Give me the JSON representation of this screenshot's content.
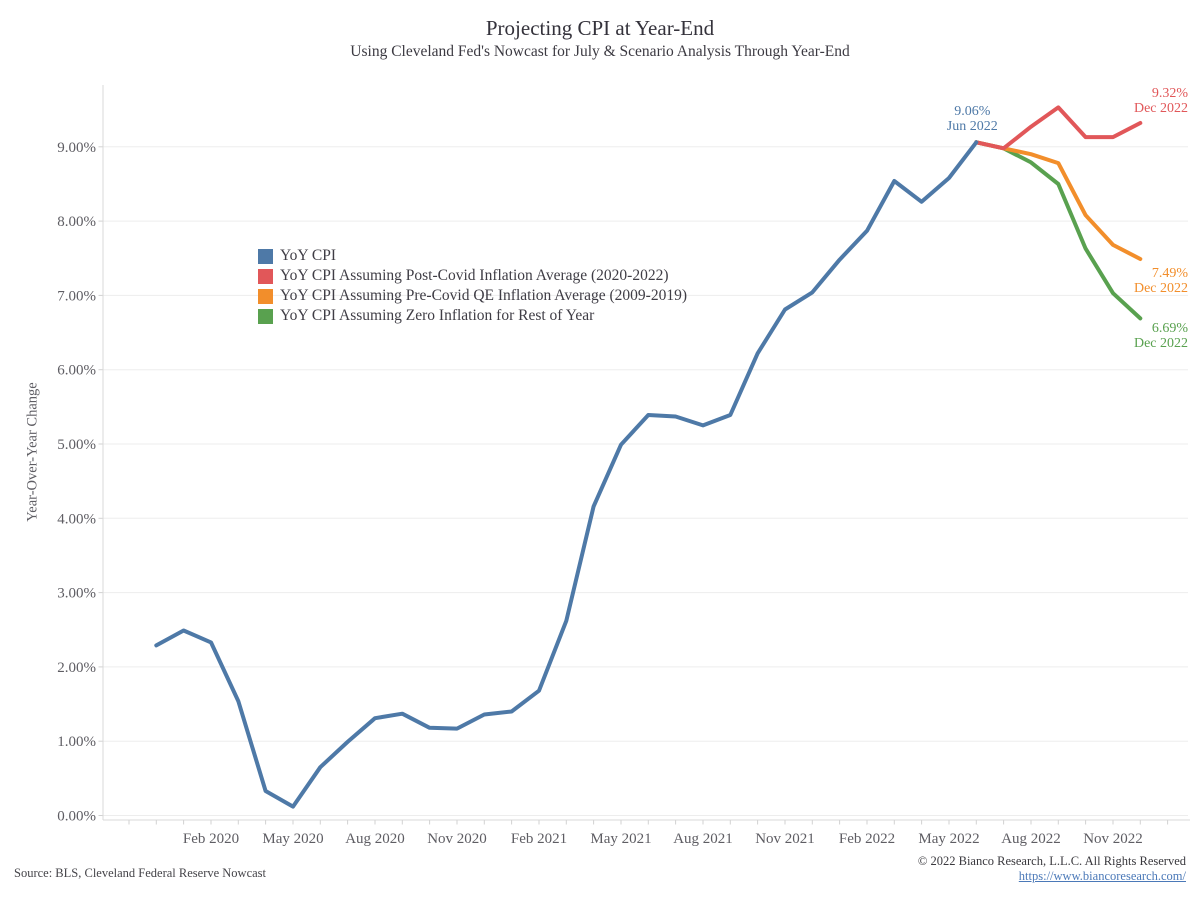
{
  "header": {
    "title": "Projecting CPI at Year-End",
    "subtitle": "Using Cleveland Fed's Nowcast for July & Scenario Analysis Through Year-End"
  },
  "footer": {
    "source": "Source: BLS, Cleveland Federal Reserve Nowcast",
    "copyright": "© 2022 Bianco Research, L.L.C. All Rights Reserved",
    "link": "https://www.biancoresearch.com/"
  },
  "chart_data": {
    "type": "line",
    "title": "Projecting CPI at Year-End",
    "subtitle": "Using Cleveland Fed's Nowcast for July & Scenario Analysis Through Year-End",
    "xlabel": "",
    "ylabel": "Year-Over-Year Change",
    "ylim": [
      0,
      9.85
    ],
    "grid": "horizontal",
    "legend_position": "inside-top-left",
    "x_unit": "month index, 0 = Dec 2019",
    "y_ticks": [
      {
        "value": 0,
        "label": "0.00%"
      },
      {
        "value": 1,
        "label": "1.00%"
      },
      {
        "value": 2,
        "label": "2.00%"
      },
      {
        "value": 3,
        "label": "3.00%"
      },
      {
        "value": 4,
        "label": "4.00%"
      },
      {
        "value": 5,
        "label": "5.00%"
      },
      {
        "value": 6,
        "label": "6.00%"
      },
      {
        "value": 7,
        "label": "7.00%"
      },
      {
        "value": 8,
        "label": "8.00%"
      },
      {
        "value": 9,
        "label": "9.00%"
      }
    ],
    "x_ticks": [
      {
        "month": 2,
        "label": "Feb 2020"
      },
      {
        "month": 5,
        "label": "May 2020"
      },
      {
        "month": 8,
        "label": "Aug 2020"
      },
      {
        "month": 11,
        "label": "Nov 2020"
      },
      {
        "month": 14,
        "label": "Feb 2021"
      },
      {
        "month": 17,
        "label": "May 2021"
      },
      {
        "month": 20,
        "label": "Aug 2021"
      },
      {
        "month": 23,
        "label": "Nov 2021"
      },
      {
        "month": 26,
        "label": "Feb 2022"
      },
      {
        "month": 29,
        "label": "May 2022"
      },
      {
        "month": 32,
        "label": "Aug 2022"
      },
      {
        "month": 35,
        "label": "Nov 2022"
      }
    ],
    "series": [
      {
        "name": "YoY CPI",
        "color": "#4e79a7",
        "start_month": 0,
        "months_note": "Dec 2019 - Jun 2022",
        "values": [
          2.29,
          2.49,
          2.33,
          1.54,
          0.33,
          0.12,
          0.65,
          0.99,
          1.31,
          1.37,
          1.18,
          1.17,
          1.36,
          1.4,
          1.68,
          2.62,
          4.16,
          4.99,
          5.39,
          5.37,
          5.25,
          5.39,
          6.22,
          6.81,
          7.04,
          7.48,
          7.87,
          8.54,
          8.26,
          8.58,
          9.06
        ]
      },
      {
        "name": "YoY CPI Assuming Post-Covid Inflation Average (2020-2022)",
        "color": "#e15759",
        "start_month": 30,
        "months_note": "Jun 2022 - Dec 2022",
        "values": [
          9.06,
          8.98,
          9.27,
          9.53,
          9.13,
          9.13,
          9.32
        ]
      },
      {
        "name": "YoY CPI Assuming Pre-Covid QE Inflation Average (2009-2019)",
        "color": "#f28e2b",
        "start_month": 30,
        "months_note": "Jun 2022 - Dec 2022",
        "values": [
          9.06,
          8.98,
          8.9,
          8.78,
          8.08,
          7.68,
          7.49
        ]
      },
      {
        "name": "YoY CPI Assuming Zero Inflation for Rest of Year",
        "color": "#59a14f",
        "start_month": 30,
        "months_note": "Jun 2022 - Dec 2022",
        "values": [
          9.06,
          8.98,
          8.79,
          8.5,
          7.63,
          7.03,
          6.69
        ]
      }
    ],
    "annotations": [
      {
        "id": "jun-peak",
        "value_label": "9.06%",
        "date_label": "Jun 2022",
        "color": "#4e79a7",
        "month": 30,
        "value": 9.06
      },
      {
        "id": "red-end",
        "value_label": "9.32%",
        "date_label": "Dec 2022",
        "color": "#e15759",
        "month": 36,
        "value": 9.32
      },
      {
        "id": "orange-end",
        "value_label": "7.49%",
        "date_label": "Dec 2022",
        "color": "#f28e2b",
        "month": 36,
        "value": 7.49
      },
      {
        "id": "green-end",
        "value_label": "6.69%",
        "date_label": "Dec 2022",
        "color": "#59a14f",
        "month": 36,
        "value": 6.69
      }
    ]
  }
}
